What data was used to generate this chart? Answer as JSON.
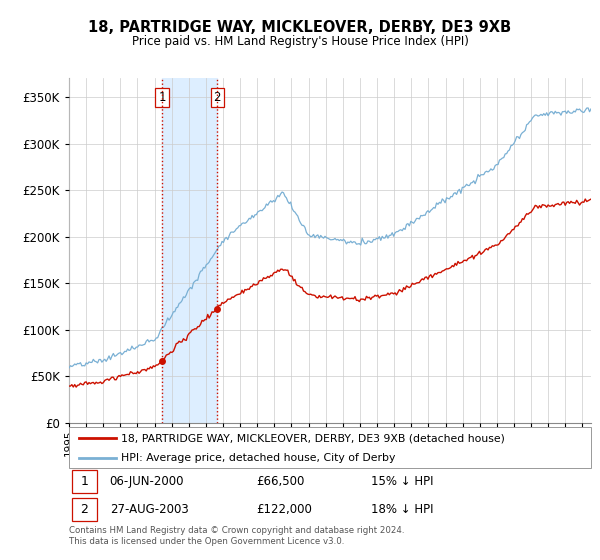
{
  "title": "18, PARTRIDGE WAY, MICKLEOVER, DERBY, DE3 9XB",
  "subtitle": "Price paid vs. HM Land Registry's House Price Index (HPI)",
  "ylabel_ticks": [
    "£0",
    "£50K",
    "£100K",
    "£150K",
    "£200K",
    "£250K",
    "£300K",
    "£350K"
  ],
  "ytick_values": [
    0,
    50000,
    100000,
    150000,
    200000,
    250000,
    300000,
    350000
  ],
  "ylim": [
    0,
    370000
  ],
  "hpi_color": "#7ab0d4",
  "price_color": "#cc1100",
  "vline_color": "#cc1100",
  "shade_color": "#ddeeff",
  "legend_line1": "18, PARTRIDGE WAY, MICKLEOVER, DERBY, DE3 9XB (detached house)",
  "legend_line2": "HPI: Average price, detached house, City of Derby",
  "sale1_date": "06-JUN-2000",
  "sale1_price": "£66,500",
  "sale1_hpi": "15% ↓ HPI",
  "sale1_year": 2000.44,
  "sale1_value": 66500,
  "sale2_date": "27-AUG-2003",
  "sale2_price": "£122,000",
  "sale2_hpi": "18% ↓ HPI",
  "sale2_year": 2003.66,
  "sale2_value": 122000,
  "footnote": "Contains HM Land Registry data © Crown copyright and database right 2024.\nThis data is licensed under the Open Government Licence v3.0.",
  "xmin": 1995,
  "xmax": 2025.5,
  "background_color": "#ffffff",
  "plot_bg_color": "#ffffff",
  "grid_color": "#cccccc"
}
